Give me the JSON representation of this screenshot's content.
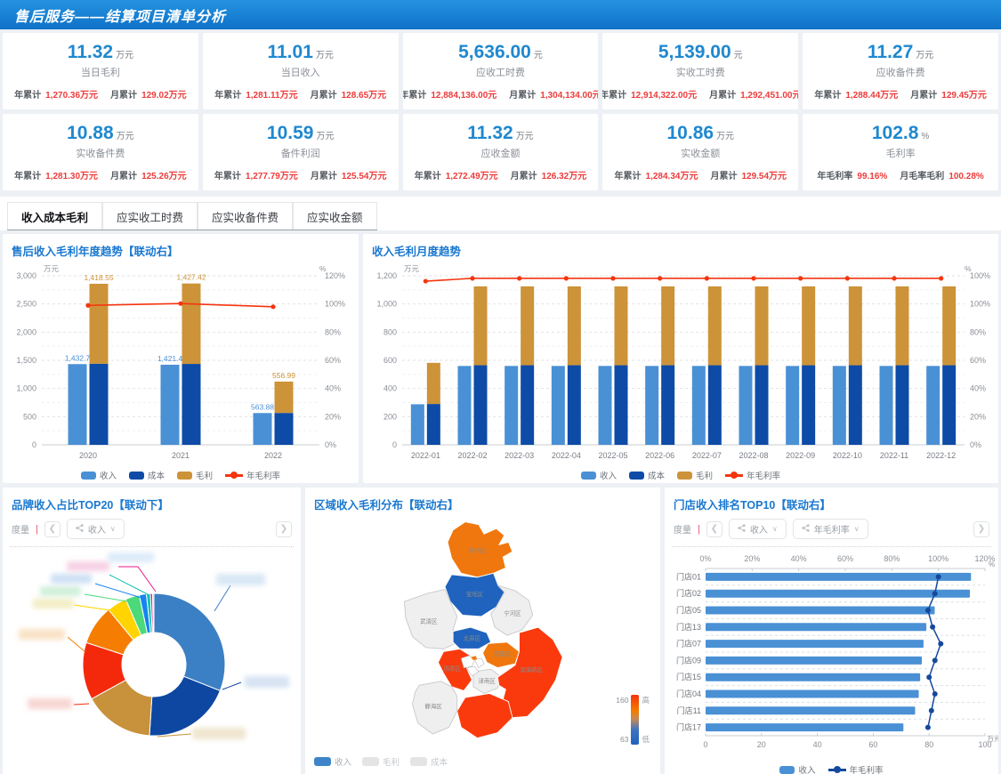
{
  "header": {
    "title": "售后服务——结算项目清单分析"
  },
  "kpi_cards": [
    {
      "value": "11.32",
      "unit": "万元",
      "label": "当日毛利",
      "stats": [
        {
          "k": "年累计",
          "v": "1,270.36万元"
        },
        {
          "k": "月累计",
          "v": "129.02万元"
        }
      ]
    },
    {
      "value": "11.01",
      "unit": "万元",
      "label": "当日收入",
      "stats": [
        {
          "k": "年累计",
          "v": "1,281.11万元"
        },
        {
          "k": "月累计",
          "v": "128.65万元"
        }
      ]
    },
    {
      "value": "5,636.00",
      "unit": "元",
      "label": "应收工时费",
      "stats": [
        {
          "k": "年累计",
          "v": "12,884,136.00元"
        },
        {
          "k": "月累计",
          "v": "1,304,134.00元"
        }
      ]
    },
    {
      "value": "5,139.00",
      "unit": "元",
      "label": "实收工时费",
      "stats": [
        {
          "k": "年累计",
          "v": "12,914,322.00元"
        },
        {
          "k": "月累计",
          "v": "1,292,451.00元"
        }
      ]
    },
    {
      "value": "11.27",
      "unit": "万元",
      "label": "应收备件费",
      "stats": [
        {
          "k": "年累计",
          "v": "1,288.44万元"
        },
        {
          "k": "月累计",
          "v": "129.45万元"
        }
      ]
    },
    {
      "value": "10.88",
      "unit": "万元",
      "label": "实收备件费",
      "stats": [
        {
          "k": "年累计",
          "v": "1,281.30万元"
        },
        {
          "k": "月累计",
          "v": "125.26万元"
        }
      ]
    },
    {
      "value": "10.59",
      "unit": "万元",
      "label": "备件利润",
      "stats": [
        {
          "k": "年累计",
          "v": "1,277.79万元"
        },
        {
          "k": "月累计",
          "v": "125.54万元"
        }
      ]
    },
    {
      "value": "11.32",
      "unit": "万元",
      "label": "应收金额",
      "stats": [
        {
          "k": "年累计",
          "v": "1,272.49万元"
        },
        {
          "k": "月累计",
          "v": "126.32万元"
        }
      ]
    },
    {
      "value": "10.86",
      "unit": "万元",
      "label": "实收金额",
      "stats": [
        {
          "k": "年累计",
          "v": "1,284.34万元"
        },
        {
          "k": "月累计",
          "v": "129.54万元"
        }
      ]
    },
    {
      "value": "102.8",
      "unit": "%",
      "label": "毛利率",
      "stats": [
        {
          "k": "年毛利率",
          "v": "99.16%"
        },
        {
          "k": "月毛率毛利",
          "v": "100.28%"
        }
      ]
    }
  ],
  "tabs": [
    {
      "label": "收入成本毛利",
      "active": true
    },
    {
      "label": "应实收工时费",
      "active": false
    },
    {
      "label": "应实收备件费",
      "active": false
    },
    {
      "label": "应实收金额",
      "active": false
    }
  ],
  "chart_data": [
    {
      "id": "yearly",
      "type": "bar",
      "title": "售后收入毛利年度趋势【联动右】",
      "categories": [
        "2020",
        "2021",
        "2022"
      ],
      "series": [
        {
          "name": "收入",
          "type": "bar",
          "color": "#4a90d5",
          "values": [
            1432.7,
            1421.4,
            563.88
          ],
          "labels": [
            "1,432.7",
            "1,421.4",
            "563.88"
          ]
        },
        {
          "name": "成本",
          "type": "bar",
          "stack": true,
          "color": "#0d4ba6",
          "values": [
            1440,
            1436,
            566
          ]
        },
        {
          "name": "毛利",
          "type": "bar",
          "stack": true,
          "color": "#cd9338",
          "values": [
            1418.55,
            1427.42,
            556.99
          ],
          "labels": [
            "1,418.55",
            "1,427.42",
            "556.99"
          ]
        },
        {
          "name": "年毛利率",
          "type": "line",
          "color": "#f5350f",
          "axis": "right",
          "values": [
            99,
            100.3,
            98
          ]
        }
      ],
      "left_axis": {
        "unit": "万元",
        "max": 3000,
        "ticks": [
          "0",
          "500",
          "1,000",
          "1,500",
          "2,000",
          "2,500",
          "3,000"
        ]
      },
      "right_axis": {
        "unit": "%",
        "max": 120,
        "ticks": [
          "0%",
          "20%",
          "40%",
          "60%",
          "80%",
          "100%",
          "120%"
        ]
      },
      "legend": [
        {
          "label": "收入",
          "color": "#4a90d5",
          "type": "bar"
        },
        {
          "label": "成本",
          "color": "#0d4ba6",
          "type": "bar"
        },
        {
          "label": "毛利",
          "color": "#cd9338",
          "type": "bar"
        },
        {
          "label": "年毛利率",
          "color": "#f5350f",
          "type": "line"
        }
      ]
    },
    {
      "id": "monthly",
      "type": "bar",
      "title": "收入毛利月度趋势",
      "categories": [
        "2022-01",
        "2022-02",
        "2022-03",
        "2022-04",
        "2022-05",
        "2022-06",
        "2022-07",
        "2022-08",
        "2022-09",
        "2022-10",
        "2022-11",
        "2022-12"
      ],
      "series": [
        {
          "name": "收入",
          "type": "bar",
          "color": "#4a90d5",
          "values": [
            288,
            560,
            560,
            560,
            560,
            560,
            560,
            560,
            560,
            560,
            560,
            560
          ]
        },
        {
          "name": "成本",
          "type": "bar",
          "stack": true,
          "color": "#0d4ba6",
          "values": [
            290,
            565,
            565,
            565,
            565,
            565,
            565,
            565,
            565,
            565,
            565,
            565
          ]
        },
        {
          "name": "毛利",
          "type": "bar",
          "stack": true,
          "color": "#cd9338",
          "values": [
            292,
            560,
            560,
            560,
            560,
            560,
            560,
            560,
            560,
            560,
            560,
            560
          ]
        },
        {
          "name": "年毛利率",
          "type": "line",
          "color": "#f5350f",
          "axis": "right",
          "values": [
            96.8,
            98.5,
            98.5,
            98.5,
            98.5,
            98.5,
            98.5,
            98.5,
            98.5,
            98.5,
            98.5,
            98.5
          ]
        }
      ],
      "left_axis": {
        "unit": "万元",
        "max": 1200,
        "ticks": [
          "0",
          "200",
          "400",
          "600",
          "800",
          "1,000",
          "1,200"
        ]
      },
      "right_axis": {
        "unit": "%",
        "max": 100,
        "ticks": [
          "0%",
          "20%",
          "40%",
          "60%",
          "80%",
          "100%"
        ]
      },
      "legend": [
        {
          "label": "收入",
          "color": "#4a90d5",
          "type": "bar"
        },
        {
          "label": "成本",
          "color": "#0d4ba6",
          "type": "bar"
        },
        {
          "label": "毛利",
          "color": "#cd9338",
          "type": "bar"
        },
        {
          "label": "年毛利率",
          "color": "#f5350f",
          "type": "line"
        }
      ]
    },
    {
      "id": "brand",
      "type": "pie",
      "title": "品牌收入占比TOP20【联动下】",
      "controls": {
        "prefix": "度量",
        "selects": [
          "收入"
        ]
      },
      "slices": [
        {
          "color": "#3b7fc4",
          "pct": 31
        },
        {
          "color": "#0d47a1",
          "pct": 20
        },
        {
          "color": "#c8913b",
          "pct": 16
        },
        {
          "color": "#f4290c",
          "pct": 13
        },
        {
          "color": "#f57d02",
          "pct": 9
        },
        {
          "color": "#ffd400",
          "pct": 4.5
        },
        {
          "color": "#4cd97a",
          "pct": 3.2
        },
        {
          "color": "#1583f0",
          "pct": 1.6
        },
        {
          "color": "#12c3b2",
          "pct": 0.9
        },
        {
          "color": "#ef1586",
          "pct": 0.5
        },
        {
          "color": "#8ec7f0",
          "pct": 0.3
        }
      ]
    },
    {
      "id": "region",
      "type": "map",
      "title": "区域收入毛利分布【联动右】",
      "districts": [
        {
          "name": "蓟州区",
          "color": "#f0770e"
        },
        {
          "name": "宝坻区",
          "color": "#1f63be"
        },
        {
          "name": "武清区",
          "color": "#efefef"
        },
        {
          "name": "宁河区",
          "color": "#efefef"
        },
        {
          "name": "北辰区",
          "color": "#1f63be"
        },
        {
          "name": "东丽区",
          "color": "#f0770e"
        },
        {
          "name": "西青区",
          "color": "#fa3a0d"
        },
        {
          "name": "津南区",
          "color": "#efefef"
        },
        {
          "name": "滨海新区",
          "color": "#fa3a0d"
        },
        {
          "name": "静海区",
          "color": "#efefef"
        }
      ],
      "legend": [
        {
          "label": "收入",
          "color": "#3d85c8",
          "active": true
        },
        {
          "label": "毛利",
          "color": "#e4e4e4",
          "active": false
        },
        {
          "label": "成本",
          "color": "#e4e4e4",
          "active": false
        }
      ],
      "scale": {
        "top": "160",
        "bottom": "63",
        "high": "高",
        "low": "低"
      }
    },
    {
      "id": "store",
      "type": "bar",
      "title": "门店收入排名TOP10【联动右】",
      "controls": {
        "prefix": "度量",
        "selects": [
          "收入",
          "年毛利率"
        ]
      },
      "categories": [
        "门店01",
        "门店02",
        "门店05",
        "门店13",
        "门店07",
        "门店09",
        "门店15",
        "门店04",
        "门店11",
        "门店17"
      ],
      "series": [
        {
          "name": "收入",
          "type": "bar",
          "color": "#4a90d5",
          "values": [
            95,
            94.6,
            82,
            79,
            78,
            77.4,
            76.8,
            76.3,
            75,
            70.8
          ]
        },
        {
          "name": "年毛利率",
          "type": "line",
          "color": "#15499c",
          "values": [
            100,
            98.5,
            95.5,
            97.5,
            101,
            98.5,
            96,
            98.5,
            97,
            95.5
          ]
        }
      ],
      "top_axis": {
        "unit": "%",
        "max": 120,
        "ticks": [
          "0%",
          "20%",
          "40%",
          "60%",
          "80%",
          "100%",
          "120%"
        ]
      },
      "bottom_axis": {
        "unit": "万元",
        "max": 100,
        "ticks": [
          "0",
          "20",
          "40",
          "60",
          "80",
          "100"
        ]
      },
      "legend": [
        {
          "label": "收入",
          "color": "#4a90d5",
          "type": "bar"
        },
        {
          "label": "年毛利率",
          "color": "#15499c",
          "type": "line"
        }
      ]
    }
  ]
}
